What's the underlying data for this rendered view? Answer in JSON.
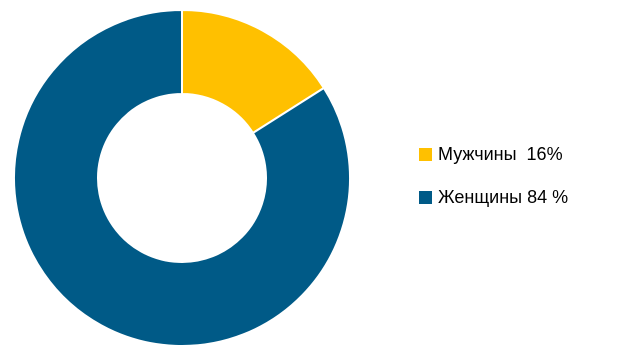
{
  "chart_data": {
    "type": "pie",
    "donut": true,
    "title": "",
    "legend_position": "right",
    "series": [
      {
        "name": "Мужчины",
        "value": 16,
        "color": "#FFC000",
        "label": "Мужчины  16%"
      },
      {
        "name": "Женщины",
        "value": 84,
        "color": "#005A87",
        "label": "Женщины 84 %"
      }
    ]
  }
}
